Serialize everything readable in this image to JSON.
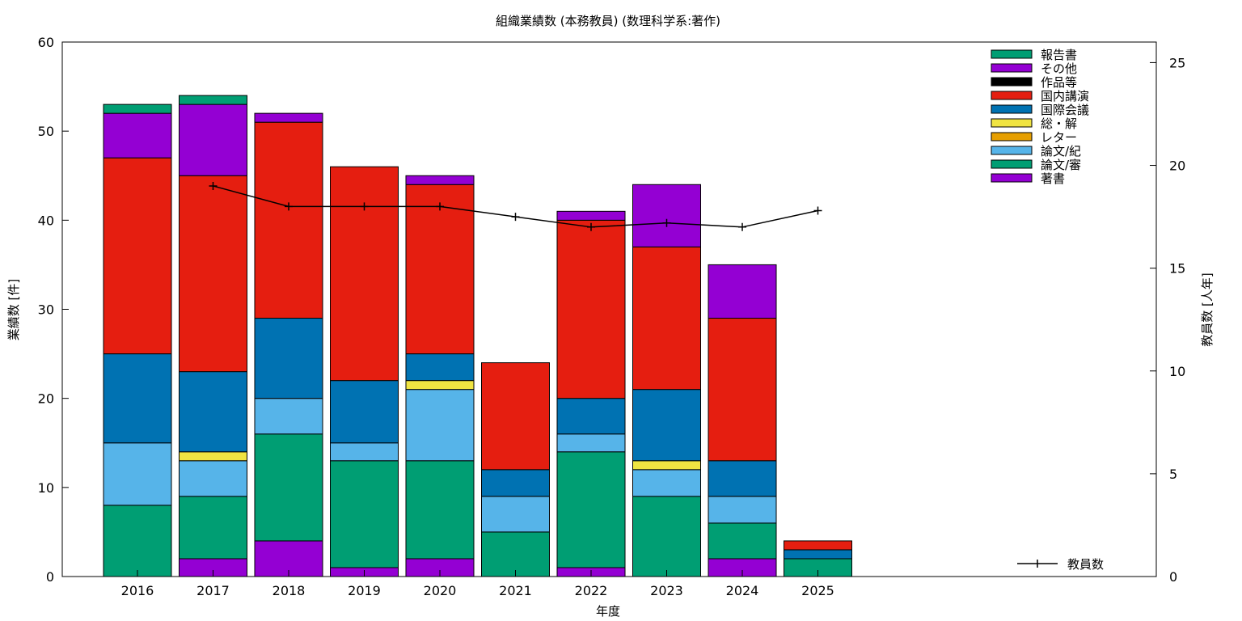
{
  "chart_data": {
    "type": "bar",
    "stacked": true,
    "title": "組織業績数 (本務教員) (数理科学系:著作)",
    "xlabel": "年度",
    "ylabel": "業績数 [件]",
    "y2label": "教員数 [人年]",
    "categories": [
      "2016",
      "2017",
      "2018",
      "2019",
      "2020",
      "2021",
      "2022",
      "2023",
      "2024",
      "2025"
    ],
    "ylim": [
      0,
      60
    ],
    "y2lim": [
      0,
      26
    ],
    "yticks": [
      "0",
      "10",
      "20",
      "30",
      "40",
      "50",
      "60"
    ],
    "y2ticks": [
      "0",
      "5",
      "10",
      "15",
      "20",
      "25"
    ],
    "legend_position": "top-right",
    "series": [
      {
        "name": "著書",
        "color": "#9400d3",
        "values": [
          0,
          2,
          4,
          1,
          2,
          0,
          1,
          0,
          2,
          0
        ]
      },
      {
        "name": "論文/審",
        "color": "#009e73",
        "values": [
          8,
          7,
          12,
          12,
          11,
          5,
          13,
          9,
          4,
          2
        ]
      },
      {
        "name": "論文/紀",
        "color": "#56b4e9",
        "values": [
          7,
          4,
          4,
          2,
          8,
          4,
          2,
          3,
          3,
          0
        ]
      },
      {
        "name": "レター",
        "color": "#e69f00",
        "values": [
          0,
          0,
          0,
          0,
          0,
          0,
          0,
          0,
          0,
          0
        ]
      },
      {
        "name": "総・解",
        "color": "#f0e442",
        "values": [
          0,
          1,
          0,
          0,
          1,
          0,
          0,
          1,
          0,
          0
        ]
      },
      {
        "name": "国際会議",
        "color": "#0072b2",
        "values": [
          10,
          9,
          9,
          7,
          3,
          3,
          4,
          8,
          4,
          1
        ]
      },
      {
        "name": "国内講演",
        "color": "#e51e10",
        "values": [
          22,
          22,
          22,
          24,
          19,
          12,
          20,
          16,
          16,
          1
        ]
      },
      {
        "name": "作品等",
        "color": "#000000",
        "values": [
          0,
          0,
          0,
          0,
          0,
          0,
          0,
          0,
          0,
          0
        ]
      },
      {
        "name": "その他",
        "color": "#9400d3",
        "values": [
          5,
          8,
          1,
          0,
          1,
          0,
          1,
          7,
          6,
          0
        ]
      },
      {
        "name": "報告書",
        "color": "#009e73",
        "values": [
          1,
          1,
          0,
          0,
          0,
          0,
          0,
          0,
          0,
          0
        ]
      }
    ],
    "line_series": {
      "name": "教員数",
      "color": "#000000",
      "x": [
        "2017",
        "2018",
        "2019",
        "2020",
        "2021",
        "2022",
        "2023",
        "2024",
        "2025"
      ],
      "values": [
        19.0,
        18.0,
        18.0,
        18.0,
        17.5,
        17.0,
        17.2,
        17.0,
        17.8
      ]
    },
    "legend_order": [
      "報告書",
      "その他",
      "作品等",
      "国内講演",
      "国際会議",
      "総・解",
      "レター",
      "論文/紀",
      "論文/審",
      "著書"
    ]
  }
}
